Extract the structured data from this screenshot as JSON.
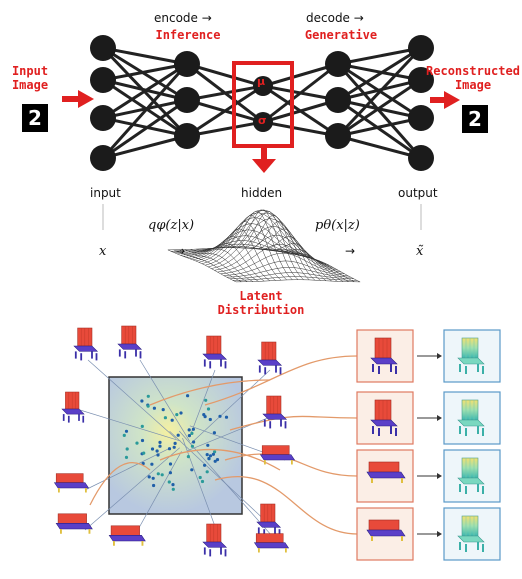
{
  "top": {
    "encode_arrow": "encode →",
    "inference": "Inference",
    "decode_arrow": "decode →",
    "generative": "Generative",
    "input_image": [
      "Input",
      "Image"
    ],
    "reconstructed_image": [
      "Reconstructed",
      "Image"
    ],
    "input_digit": "2",
    "output_digit": "2",
    "mu": "μ",
    "sigma": "σ",
    "layer_labels": {
      "input": "input",
      "hidden": "hidden",
      "output": "output"
    },
    "math": {
      "x": "x",
      "q": "qφ(z|x)",
      "p": "pθ(x|z)",
      "xt": "x̃",
      "arrow": "→"
    },
    "latent_distribution": [
      "Latent",
      "Distribution"
    ]
  },
  "colors": {
    "accent_red": "#e02020",
    "node": "#1a1a1a",
    "chair_red": "#e84a3a",
    "chair_purple": "#5a3fc8",
    "chair_teal": "#5fd0c0",
    "chair_yellow": "#f2dc5a",
    "latent_bg": "#c9d6e6"
  },
  "icons": {
    "chairs": "chair-icon",
    "arrows": "arrow-icon"
  }
}
